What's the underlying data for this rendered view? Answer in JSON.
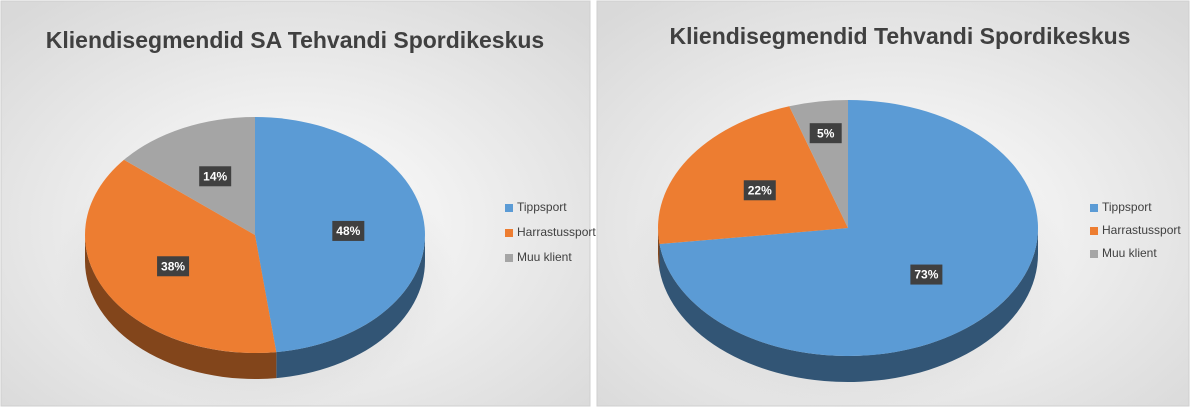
{
  "chart_data": [
    {
      "type": "pie",
      "title": "Kliendisegmendid SA Tehvandi Spordikeskus",
      "categories": [
        "Tippsport",
        "Harrastussport",
        "Muu klient"
      ],
      "values": [
        48,
        38,
        14
      ],
      "value_labels": [
        "48%",
        "38%",
        "14%"
      ],
      "colors": [
        "#5b9bd5",
        "#ed7d31",
        "#a5a5a5"
      ],
      "legend": "right"
    },
    {
      "type": "pie",
      "title": "Kliendisegmendid Tehvandi Spordikeskus",
      "categories": [
        "Tippsport",
        "Harrastussport",
        "Muu klient"
      ],
      "values": [
        73,
        22,
        5
      ],
      "value_labels": [
        "73%",
        "22%",
        "5%"
      ],
      "colors": [
        "#5b9bd5",
        "#ed7d31",
        "#a5a5a5"
      ],
      "legend": "right"
    }
  ]
}
